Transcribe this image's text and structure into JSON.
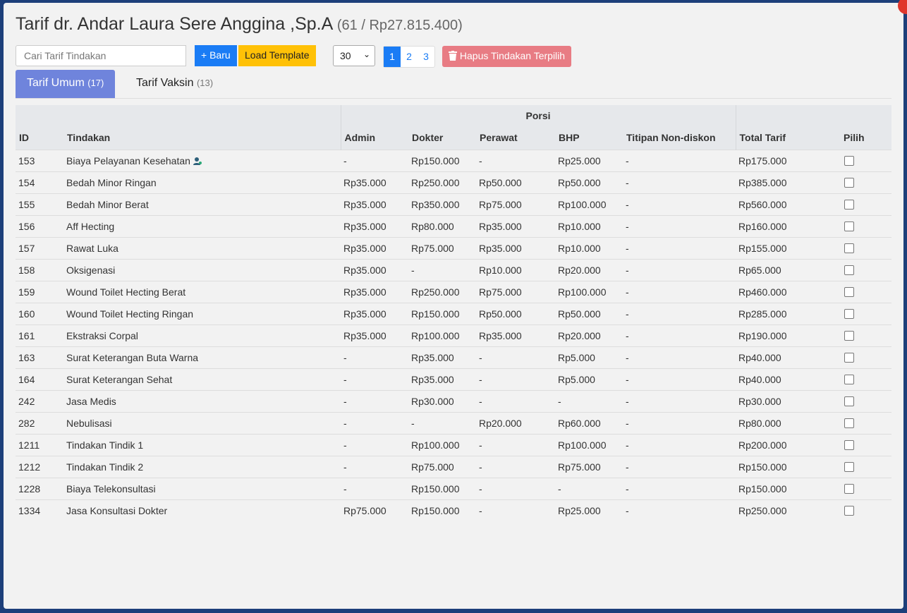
{
  "header": {
    "title": "Tarif dr. Andar Laura Sere Anggina ,Sp.A",
    "summary": "(61 / Rp27.815.400)"
  },
  "toolbar": {
    "search_placeholder": "Cari Tarif Tindakan",
    "new_button": "+ Baru",
    "load_template": "Load Template",
    "page_size": "30",
    "pages": [
      "1",
      "2",
      "3"
    ],
    "delete_button": "Hapus Tindakan Terpilih"
  },
  "tabs": [
    {
      "label": "Tarif Umum",
      "count": "(17)"
    },
    {
      "label": "Tarif Vaksin",
      "count": "(13)"
    }
  ],
  "table": {
    "group_header": "Porsi",
    "columns": [
      "ID",
      "Tindakan",
      "Admin",
      "Dokter",
      "Perawat",
      "BHP",
      "Titipan Non-diskon",
      "Total Tarif",
      "Pilih"
    ],
    "rows": [
      [
        "153",
        "Biaya Pelayanan Kesehatan",
        "-",
        "Rp150.000",
        "-",
        "Rp25.000",
        "-",
        "Rp175.000"
      ],
      [
        "154",
        "Bedah Minor Ringan",
        "Rp35.000",
        "Rp250.000",
        "Rp50.000",
        "Rp50.000",
        "-",
        "Rp385.000"
      ],
      [
        "155",
        "Bedah Minor Berat",
        "Rp35.000",
        "Rp350.000",
        "Rp75.000",
        "Rp100.000",
        "-",
        "Rp560.000"
      ],
      [
        "156",
        "Aff Hecting",
        "Rp35.000",
        "Rp80.000",
        "Rp35.000",
        "Rp10.000",
        "-",
        "Rp160.000"
      ],
      [
        "157",
        "Rawat Luka",
        "Rp35.000",
        "Rp75.000",
        "Rp35.000",
        "Rp10.000",
        "-",
        "Rp155.000"
      ],
      [
        "158",
        "Oksigenasi",
        "Rp35.000",
        "-",
        "Rp10.000",
        "Rp20.000",
        "-",
        "Rp65.000"
      ],
      [
        "159",
        "Wound Toilet Hecting Berat",
        "Rp35.000",
        "Rp250.000",
        "Rp75.000",
        "Rp100.000",
        "-",
        "Rp460.000"
      ],
      [
        "160",
        "Wound Toilet Hecting Ringan",
        "Rp35.000",
        "Rp150.000",
        "Rp50.000",
        "Rp50.000",
        "-",
        "Rp285.000"
      ],
      [
        "161",
        "Ekstraksi Corpal",
        "Rp35.000",
        "Rp100.000",
        "Rp35.000",
        "Rp20.000",
        "-",
        "Rp190.000"
      ],
      [
        "163",
        "Surat Keterangan Buta Warna",
        "-",
        "Rp35.000",
        "-",
        "Rp5.000",
        "-",
        "Rp40.000"
      ],
      [
        "164",
        "Surat Keterangan Sehat",
        "-",
        "Rp35.000",
        "-",
        "Rp5.000",
        "-",
        "Rp40.000"
      ],
      [
        "242",
        "Jasa Medis",
        "-",
        "Rp30.000",
        "-",
        "-",
        "-",
        "Rp30.000"
      ],
      [
        "282",
        "Nebulisasi",
        "-",
        "-",
        "Rp20.000",
        "Rp60.000",
        "-",
        "Rp80.000"
      ],
      [
        "1211",
        "Tindakan Tindik 1",
        "-",
        "Rp100.000",
        "-",
        "Rp100.000",
        "-",
        "Rp200.000"
      ],
      [
        "1212",
        "Tindakan Tindik 2",
        "-",
        "Rp75.000",
        "-",
        "Rp75.000",
        "-",
        "Rp150.000"
      ],
      [
        "1228",
        "Biaya Telekonsultasi",
        "-",
        "Rp150.000",
        "-",
        "-",
        "-",
        "Rp150.000"
      ],
      [
        "1334",
        "Jasa Konsultasi Dokter",
        "Rp75.000",
        "Rp150.000",
        "-",
        "Rp25.000",
        "-",
        "Rp250.000"
      ]
    ]
  }
}
